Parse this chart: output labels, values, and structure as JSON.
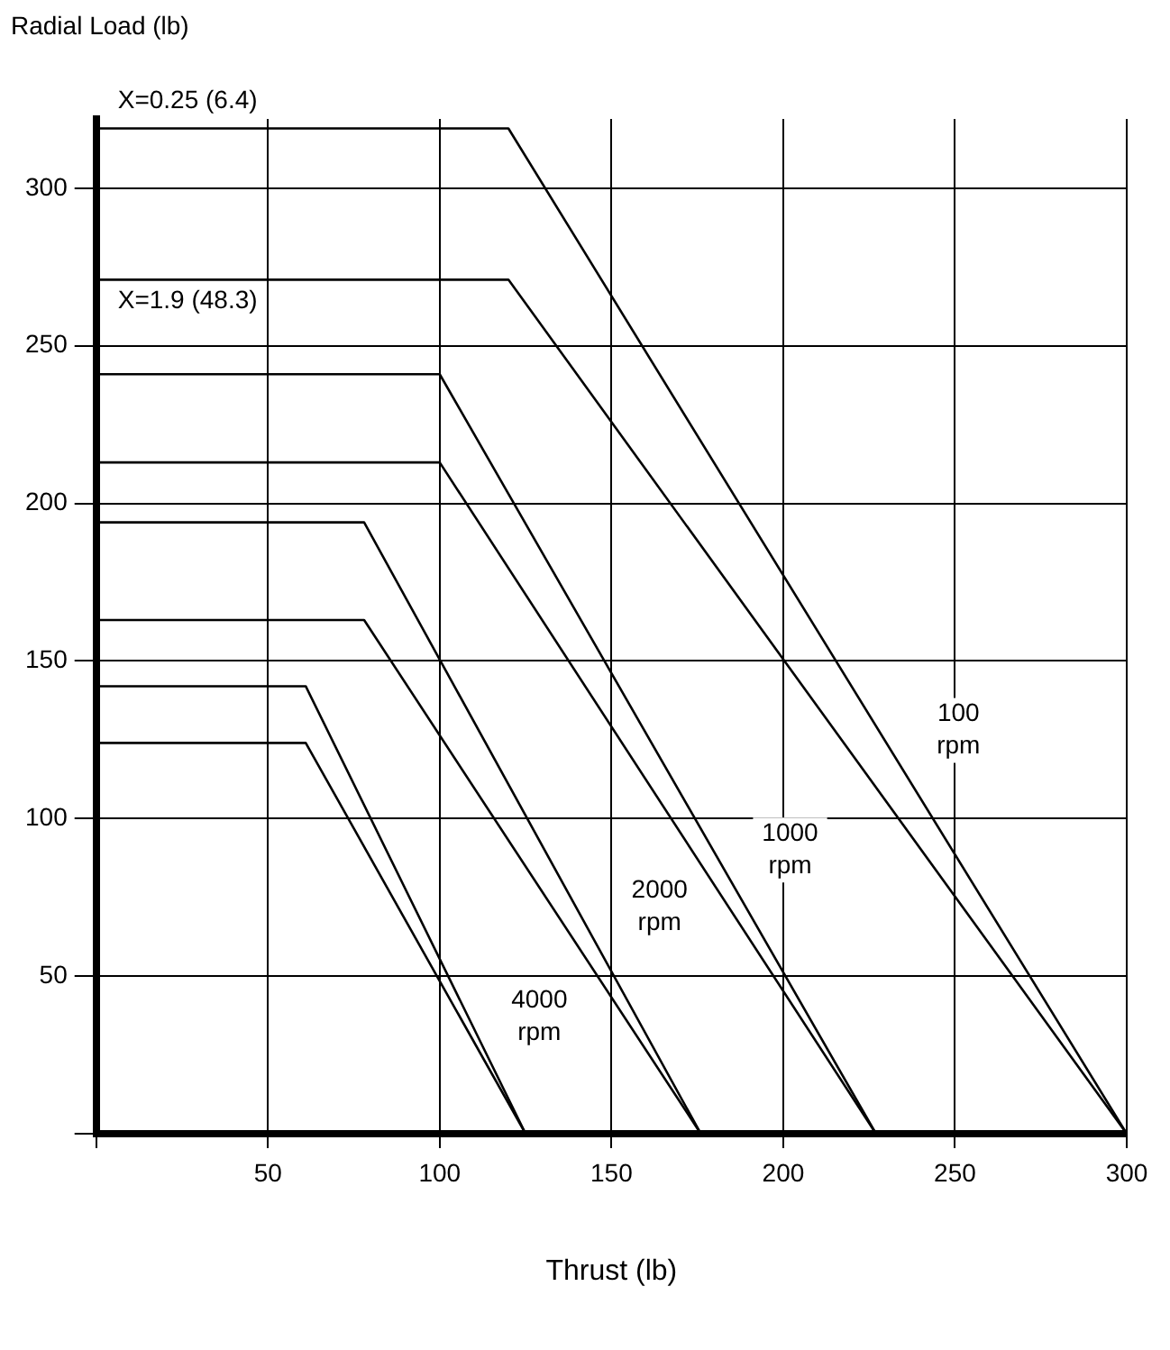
{
  "chart_data": {
    "type": "line",
    "xlabel": "Thrust (lb)",
    "ylabel": "Radial Load (lb)",
    "xlim": [
      0,
      300
    ],
    "xticks": [
      {
        "value": 0,
        "label": null
      },
      50,
      100,
      150,
      200,
      250,
      300
    ],
    "ylim": [
      0,
      322
    ],
    "yticks": [
      {
        "value": 0,
        "label": null
      },
      50,
      100,
      150,
      200,
      250,
      300
    ],
    "grid": true,
    "marker": "none",
    "line_style": "solid",
    "series": [
      {
        "color": "#000000",
        "x": [
          0,
          120,
          300
        ],
        "values": [
          319,
          319,
          0
        ]
      },
      {
        "color": "#000000",
        "x": [
          0,
          120,
          300
        ],
        "values": [
          271,
          271,
          0
        ]
      },
      {
        "color": "#000000",
        "x": [
          0,
          100,
          227
        ],
        "values": [
          241,
          241,
          0
        ]
      },
      {
        "color": "#000000",
        "x": [
          0,
          100,
          227
        ],
        "values": [
          213,
          213,
          0
        ]
      },
      {
        "color": "#000000",
        "x": [
          0,
          78,
          176
        ],
        "values": [
          194,
          194,
          0
        ]
      },
      {
        "color": "#000000",
        "x": [
          0,
          78,
          176
        ],
        "values": [
          163,
          163,
          0
        ]
      },
      {
        "color": "#000000",
        "x": [
          0,
          61,
          125
        ],
        "values": [
          142,
          142,
          0
        ]
      },
      {
        "color": "#000000",
        "x": [
          0,
          61,
          125
        ],
        "values": [
          124,
          124,
          0
        ]
      }
    ],
    "annotations": [
      "X=0.25 (6.4)",
      "X=1.9 (48.3)",
      {
        "text": "100 rpm",
        "x": 251,
        "y": 128
      },
      {
        "text": "1000 rpm",
        "x": 202,
        "y": 90
      },
      {
        "text": "2000 rpm",
        "x": 164,
        "y": 72
      },
      {
        "text": "4000 rpm",
        "x": 129,
        "y": 37
      }
    ]
  }
}
